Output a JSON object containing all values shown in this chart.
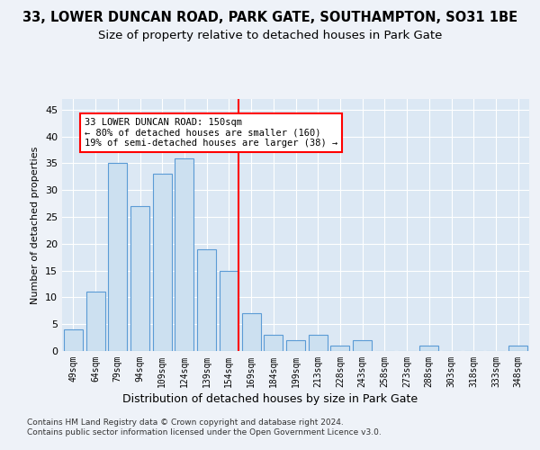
{
  "title1": "33, LOWER DUNCAN ROAD, PARK GATE, SOUTHAMPTON, SO31 1BE",
  "title2": "Size of property relative to detached houses in Park Gate",
  "xlabel": "Distribution of detached houses by size in Park Gate",
  "ylabel": "Number of detached properties",
  "categories": [
    "49sqm",
    "64sqm",
    "79sqm",
    "94sqm",
    "109sqm",
    "124sqm",
    "139sqm",
    "154sqm",
    "169sqm",
    "184sqm",
    "199sqm",
    "213sqm",
    "228sqm",
    "243sqm",
    "258sqm",
    "273sqm",
    "288sqm",
    "303sqm",
    "318sqm",
    "333sqm",
    "348sqm"
  ],
  "values": [
    4,
    11,
    35,
    27,
    33,
    36,
    19,
    15,
    7,
    3,
    2,
    3,
    1,
    2,
    0,
    0,
    1,
    0,
    0,
    0,
    1
  ],
  "bar_color": "#cce0f0",
  "bar_edge_color": "#5b9bd5",
  "red_line_index": 7,
  "annotation_lines": [
    "33 LOWER DUNCAN ROAD: 150sqm",
    "← 80% of detached houses are smaller (160)",
    "19% of semi-detached houses are larger (38) →"
  ],
  "ylim": [
    0,
    47
  ],
  "yticks": [
    0,
    5,
    10,
    15,
    20,
    25,
    30,
    35,
    40,
    45
  ],
  "footer1": "Contains HM Land Registry data © Crown copyright and database right 2024.",
  "footer2": "Contains public sector information licensed under the Open Government Licence v3.0.",
  "bg_color": "#eef2f8",
  "plot_bg_color": "#dce8f4",
  "grid_color": "#ffffff",
  "title1_fontsize": 10.5,
  "title2_fontsize": 9.5
}
